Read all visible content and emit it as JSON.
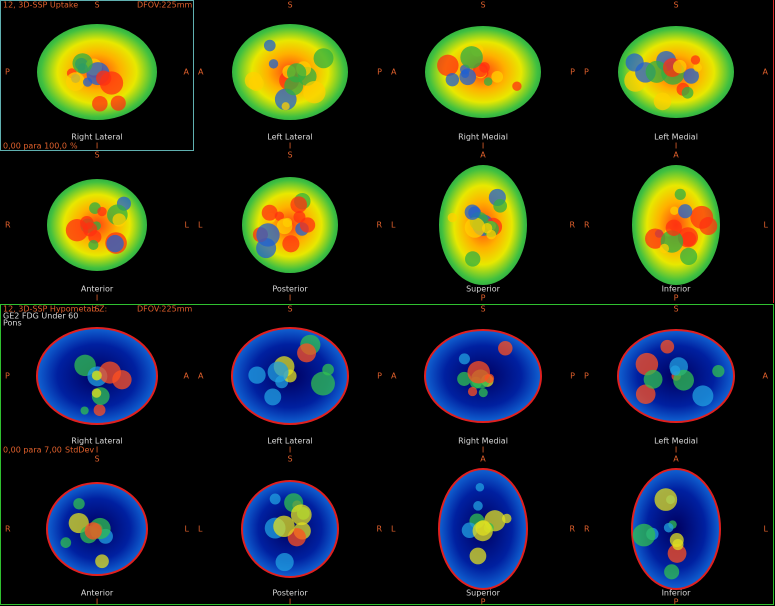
{
  "panels": [
    {
      "title": "12, 3D-SSP Uptake",
      "dfov": "DFOV:225mm",
      "notes": [],
      "scale": "0,00 para 100,0",
      "unit": "%",
      "views": [
        {
          "label": "Right Lateral",
          "top": "S",
          "bottom": "I",
          "left": "P",
          "right": "A"
        },
        {
          "label": "Left Lateral",
          "top": "S",
          "bottom": "I",
          "left": "A",
          "right": "P"
        },
        {
          "label": "Right Medial",
          "top": "S",
          "bottom": "I",
          "left": "A",
          "right": "P"
        },
        {
          "label": "Left Medial",
          "top": "S",
          "bottom": "I",
          "left": "P",
          "right": "A"
        },
        {
          "label": "Anterior",
          "top": "S",
          "bottom": "I",
          "left": "R",
          "right": "L"
        },
        {
          "label": "Posterior",
          "top": "S",
          "bottom": "I",
          "left": "L",
          "right": "R"
        },
        {
          "label": "Superior",
          "top": "A",
          "bottom": "P",
          "left": "L",
          "right": "R"
        },
        {
          "label": "Inferior",
          "top": "A",
          "bottom": "P",
          "left": "R",
          "right": "L"
        }
      ]
    },
    {
      "title": "12, 3D-SSP Hypometab Z:",
      "dfov": "DFOV:225mm",
      "notes": [
        "GE2 FDG Under 60",
        "Pons"
      ],
      "scale": "0,00 para 7,00",
      "unit": "StdDev",
      "views": [
        {
          "label": "Right Lateral",
          "top": "S",
          "bottom": "I",
          "left": "P",
          "right": "A"
        },
        {
          "label": "Left Lateral",
          "top": "S",
          "bottom": "I",
          "left": "A",
          "right": "P"
        },
        {
          "label": "Right Medial",
          "top": "S",
          "bottom": "I",
          "left": "A",
          "right": "P"
        },
        {
          "label": "Left Medial",
          "top": "S",
          "bottom": "I",
          "left": "P",
          "right": "A"
        },
        {
          "label": "Anterior",
          "top": "S",
          "bottom": "I",
          "left": "R",
          "right": "L"
        },
        {
          "label": "Posterior",
          "top": "S",
          "bottom": "I",
          "left": "L",
          "right": "R"
        },
        {
          "label": "Superior",
          "top": "A",
          "bottom": "P",
          "left": "L",
          "right": "R"
        },
        {
          "label": "Inferior",
          "top": "A",
          "bottom": "P",
          "left": "R",
          "right": "L"
        }
      ]
    }
  ]
}
